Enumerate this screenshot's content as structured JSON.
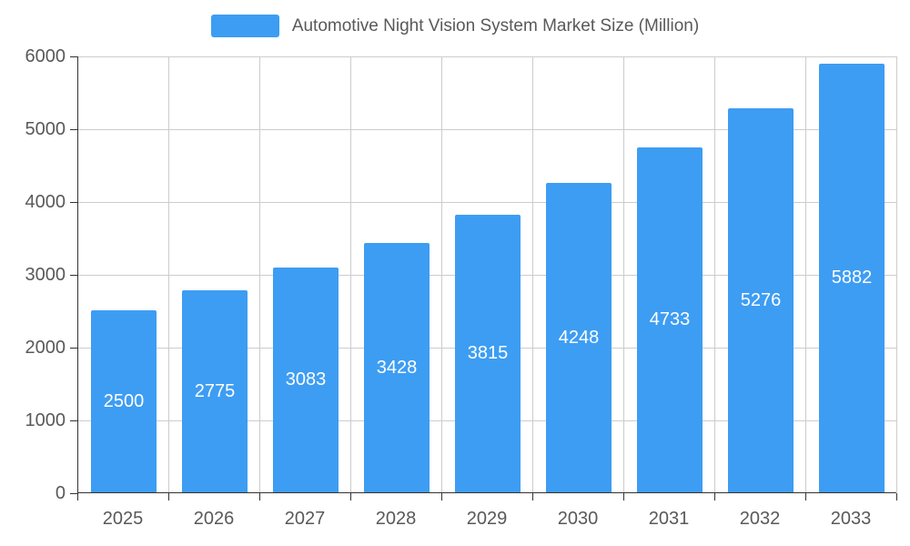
{
  "legend": {
    "label": "Automotive Night Vision System Market Size (Million)"
  },
  "colors": {
    "bar": "#3d9df3",
    "grid": "#cccccc",
    "axis": "#333333",
    "tick_label": "#595959",
    "bar_label": "#ffffff",
    "background": "#ffffff"
  },
  "chart_data": {
    "type": "bar",
    "title": "Automotive Night Vision System Market Size (Million)",
    "categories": [
      "2025",
      "2026",
      "2027",
      "2028",
      "2029",
      "2030",
      "2031",
      "2032",
      "2033"
    ],
    "values": [
      2500,
      2775,
      3083,
      3428,
      3815,
      4248,
      4733,
      5276,
      5882
    ],
    "xlabel": "",
    "ylabel": "",
    "ylim": [
      0,
      6000
    ],
    "y_ticks": [
      0,
      1000,
      2000,
      3000,
      4000,
      5000,
      6000
    ],
    "grid": true,
    "legend_position": "top",
    "bar_label_position": "inside-center"
  }
}
